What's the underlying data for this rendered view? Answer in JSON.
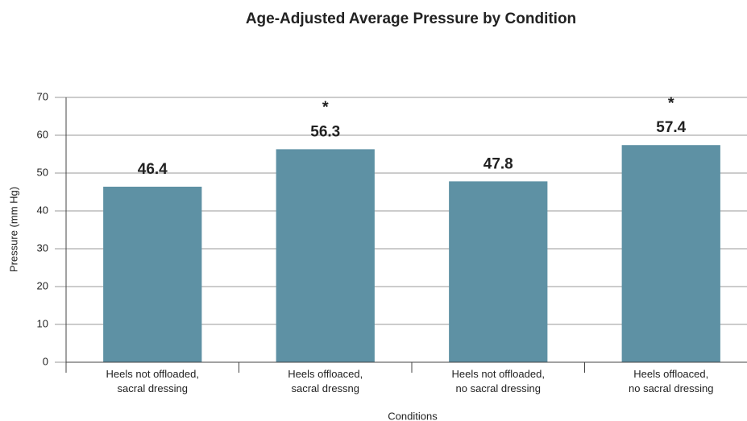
{
  "chart_data": {
    "type": "bar",
    "title": "Age-Adjusted Average Pressure by Condition",
    "categories": [
      [
        "Heels not offloaded,",
        "sacral dressing"
      ],
      [
        "Heels offloaced,",
        "sacral dressng"
      ],
      [
        "Heels not offloaded,",
        "no sacral dressing"
      ],
      [
        "Heels offloaced,",
        "no sacral dressing"
      ]
    ],
    "values": [
      46.4,
      56.3,
      47.8,
      57.4
    ],
    "annotations": [
      null,
      "*",
      null,
      "*"
    ],
    "color": "#5e91a4",
    "ylim": [
      0,
      70
    ],
    "yticks": [
      0,
      10,
      20,
      30,
      40,
      50,
      60,
      70
    ],
    "grid": true,
    "xlabel": "Conditions",
    "ylabel": "Pressure (mm Hg)"
  }
}
